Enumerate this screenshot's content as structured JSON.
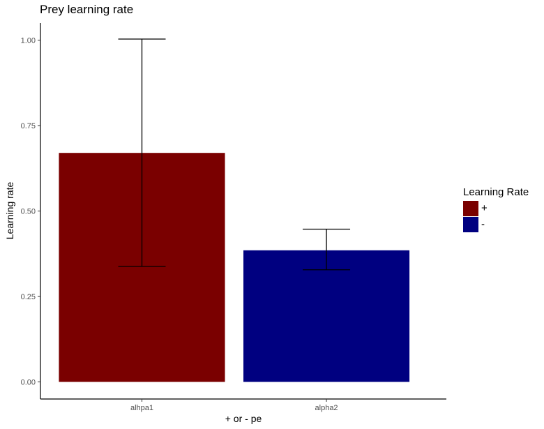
{
  "chart_data": {
    "type": "bar",
    "title": "Prey learning rate",
    "xlabel": "+ or - pe",
    "ylabel": "Learning rate",
    "categories": [
      "alhpa1",
      "alpha2"
    ],
    "values": [
      0.67,
      0.385
    ],
    "error_bars": [
      {
        "low": 0.338,
        "high": 1.003
      },
      {
        "low": 0.328,
        "high": 0.447
      }
    ],
    "colors": [
      "#7a0000",
      "#000080"
    ],
    "ylim": [
      -0.05,
      1.05
    ],
    "yticks": [
      0.0,
      0.25,
      0.5,
      0.75,
      1.0
    ],
    "ytick_labels": [
      "0.00",
      "0.25",
      "0.50",
      "0.75",
      "1.00"
    ],
    "grid": false,
    "legend": {
      "title": "Learning Rate",
      "position": "right",
      "entries": [
        {
          "label": "+",
          "color": "#7a0000"
        },
        {
          "label": "-",
          "color": "#000080"
        }
      ]
    }
  }
}
